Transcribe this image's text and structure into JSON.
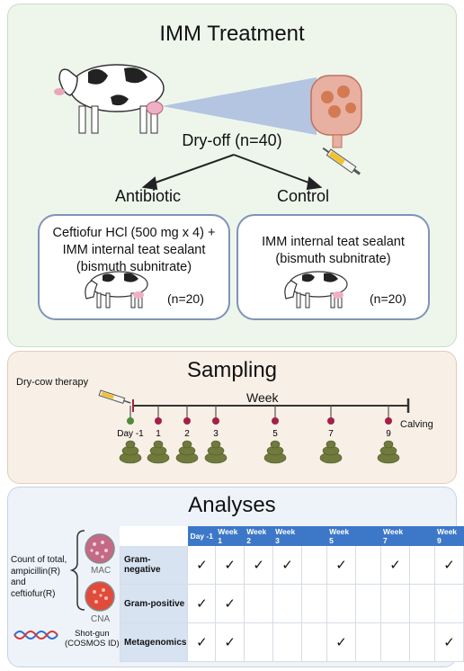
{
  "treatment": {
    "title": "IMM Treatment",
    "dryoff": "Dry-off (n=40)",
    "antibiotic": {
      "heading": "Antibiotic",
      "line1": "Ceftiofur HCl (500 mg x 4) +",
      "line2": "IMM internal teat sealant",
      "line3": "(bismuth subnitrate)",
      "n": "(n=20)"
    },
    "control": {
      "heading": "Control",
      "line1": "IMM internal teat sealant",
      "line2": "(bismuth subnitrate)",
      "n": "(n=20)"
    }
  },
  "sampling": {
    "title": "Sampling",
    "therapy_label": "Dry-cow therapy",
    "axis_label": "Week",
    "end_label": "Calving",
    "points": [
      "Day -1",
      "1",
      "2",
      "3",
      "5",
      "7",
      "9"
    ]
  },
  "analyses": {
    "title": "Analyses",
    "count_label": [
      "Count of total,",
      "ampicillin(R)",
      "and",
      "ceftiofur(R)"
    ],
    "mac": "MAC",
    "cna": "CNA",
    "shotgun": [
      "Shot-gun",
      "(COSMOS ID)"
    ],
    "columns": [
      "Day -1",
      "Week 1",
      "Week 2",
      "Week 3",
      "",
      "Week 5",
      "",
      "Week 7",
      "",
      "Week 9"
    ],
    "rows": [
      {
        "label": "Gram-negative",
        "cells": [
          "✓",
          "✓",
          "✓",
          "✓",
          "",
          "✓",
          "",
          "✓",
          "",
          "✓"
        ]
      },
      {
        "label": "Gram-positive",
        "cells": [
          "✓",
          "✓",
          "",
          "",
          "",
          "",
          "",
          "",
          "",
          ""
        ]
      },
      {
        "label": "Metagenomics",
        "cells": [
          "✓",
          "✓",
          "",
          "",
          "",
          "✓",
          "",
          "",
          "",
          "✓"
        ]
      }
    ]
  },
  "colors": {
    "accent_blue": "#3d78c8",
    "timeline_dot": "#a3204a",
    "first_dot": "#4f8a3a",
    "feces": "#6f7a3c"
  }
}
